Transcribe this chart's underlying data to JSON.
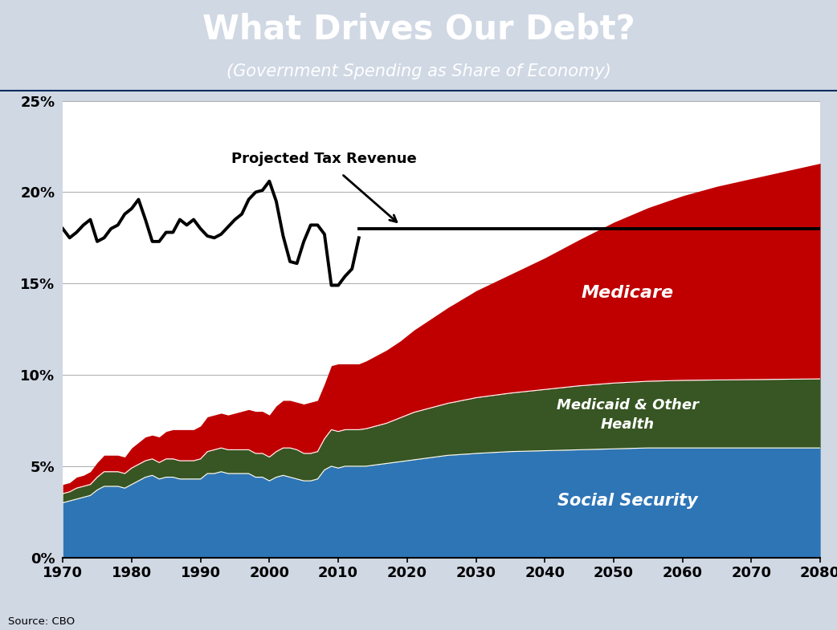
{
  "title": "What Drives Our Debt?",
  "subtitle": "(Government Spending as Share of Economy)",
  "title_bg_color": "#1B4F8A",
  "title_text_color": "#FFFFFF",
  "chart_bg_color": "#FFFFFF",
  "outer_bg_color": "#D0D8E4",
  "source_text": "Source: CBO",
  "years_historical": [
    1970,
    1971,
    1972,
    1973,
    1974,
    1975,
    1976,
    1977,
    1978,
    1979,
    1980,
    1981,
    1982,
    1983,
    1984,
    1985,
    1986,
    1987,
    1988,
    1989,
    1990,
    1991,
    1992,
    1993,
    1994,
    1995,
    1996,
    1997,
    1998,
    1999,
    2000,
    2001,
    2002,
    2003,
    2004,
    2005,
    2006,
    2007,
    2008,
    2009,
    2010,
    2011,
    2012,
    2013
  ],
  "years_projected": [
    2014,
    2015,
    2016,
    2017,
    2018,
    2019,
    2020,
    2021,
    2022,
    2023,
    2024,
    2025,
    2026,
    2027,
    2028,
    2029,
    2030,
    2035,
    2040,
    2045,
    2050,
    2055,
    2060,
    2065,
    2070,
    2075,
    2080
  ],
  "social_security_hist": [
    3.0,
    3.1,
    3.2,
    3.3,
    3.4,
    3.7,
    3.9,
    3.9,
    3.9,
    3.8,
    4.0,
    4.2,
    4.4,
    4.5,
    4.3,
    4.4,
    4.4,
    4.3,
    4.3,
    4.3,
    4.3,
    4.6,
    4.6,
    4.7,
    4.6,
    4.6,
    4.6,
    4.6,
    4.4,
    4.4,
    4.2,
    4.4,
    4.5,
    4.4,
    4.3,
    4.2,
    4.2,
    4.3,
    4.8,
    5.0,
    4.9,
    5.0,
    5.0,
    5.0
  ],
  "medicaid_hist": [
    0.5,
    0.5,
    0.6,
    0.6,
    0.6,
    0.7,
    0.8,
    0.8,
    0.8,
    0.8,
    0.9,
    0.9,
    0.9,
    0.9,
    0.9,
    1.0,
    1.0,
    1.0,
    1.0,
    1.0,
    1.1,
    1.2,
    1.3,
    1.3,
    1.3,
    1.3,
    1.3,
    1.3,
    1.3,
    1.3,
    1.3,
    1.4,
    1.5,
    1.6,
    1.6,
    1.5,
    1.5,
    1.5,
    1.7,
    2.0,
    2.0,
    2.0,
    2.0,
    2.0
  ],
  "medicare_hist": [
    0.5,
    0.5,
    0.6,
    0.6,
    0.7,
    0.8,
    0.9,
    0.9,
    0.9,
    0.9,
    1.1,
    1.2,
    1.3,
    1.3,
    1.4,
    1.5,
    1.6,
    1.7,
    1.7,
    1.7,
    1.8,
    1.9,
    1.9,
    1.9,
    1.9,
    2.0,
    2.1,
    2.2,
    2.3,
    2.3,
    2.3,
    2.5,
    2.6,
    2.6,
    2.6,
    2.7,
    2.8,
    2.8,
    3.0,
    3.5,
    3.7,
    3.6,
    3.6,
    3.6
  ],
  "social_security_proj": [
    5.0,
    5.05,
    5.1,
    5.15,
    5.2,
    5.25,
    5.3,
    5.35,
    5.4,
    5.45,
    5.5,
    5.55,
    5.6,
    5.62,
    5.65,
    5.67,
    5.7,
    5.8,
    5.85,
    5.9,
    5.95,
    6.0,
    6.0,
    6.0,
    6.0,
    6.0,
    6.0
  ],
  "medicaid_proj": [
    2.05,
    2.1,
    2.15,
    2.2,
    2.3,
    2.4,
    2.5,
    2.6,
    2.65,
    2.7,
    2.75,
    2.8,
    2.85,
    2.9,
    2.95,
    3.0,
    3.05,
    3.2,
    3.35,
    3.5,
    3.6,
    3.65,
    3.7,
    3.72,
    3.74,
    3.76,
    3.78
  ],
  "medicare_proj": [
    3.7,
    3.8,
    3.9,
    4.0,
    4.1,
    4.2,
    4.35,
    4.5,
    4.65,
    4.8,
    4.95,
    5.1,
    5.25,
    5.4,
    5.55,
    5.7,
    5.85,
    6.5,
    7.2,
    8.0,
    8.8,
    9.5,
    10.1,
    10.6,
    11.0,
    11.4,
    11.8
  ],
  "tax_revenue_hist": [
    18.0,
    17.5,
    17.8,
    18.2,
    18.5,
    17.3,
    17.5,
    18.0,
    18.2,
    18.8,
    19.1,
    19.6,
    18.5,
    17.3,
    17.3,
    17.8,
    17.8,
    18.5,
    18.2,
    18.5,
    18.0,
    17.6,
    17.5,
    17.7,
    18.1,
    18.5,
    18.8,
    19.6,
    20.0,
    20.1,
    20.6,
    19.5,
    17.6,
    16.2,
    16.1,
    17.3,
    18.2,
    18.2,
    17.7,
    14.9,
    14.9,
    15.4,
    15.8,
    17.5
  ],
  "tax_revenue_flat": 18.0,
  "tax_proj_start": 2013,
  "social_security_color": "#2E75B6",
  "medicaid_color": "#375623",
  "medicare_color": "#C00000",
  "tax_line_color": "#000000",
  "ylim": [
    0,
    25
  ],
  "yticks": [
    0,
    5,
    10,
    15,
    20,
    25
  ],
  "ytick_labels": [
    "0%",
    "5%",
    "10%",
    "15%",
    "20%",
    "25%"
  ],
  "xticks": [
    1970,
    1980,
    1990,
    2000,
    2010,
    2020,
    2030,
    2040,
    2050,
    2060,
    2070,
    2080
  ]
}
